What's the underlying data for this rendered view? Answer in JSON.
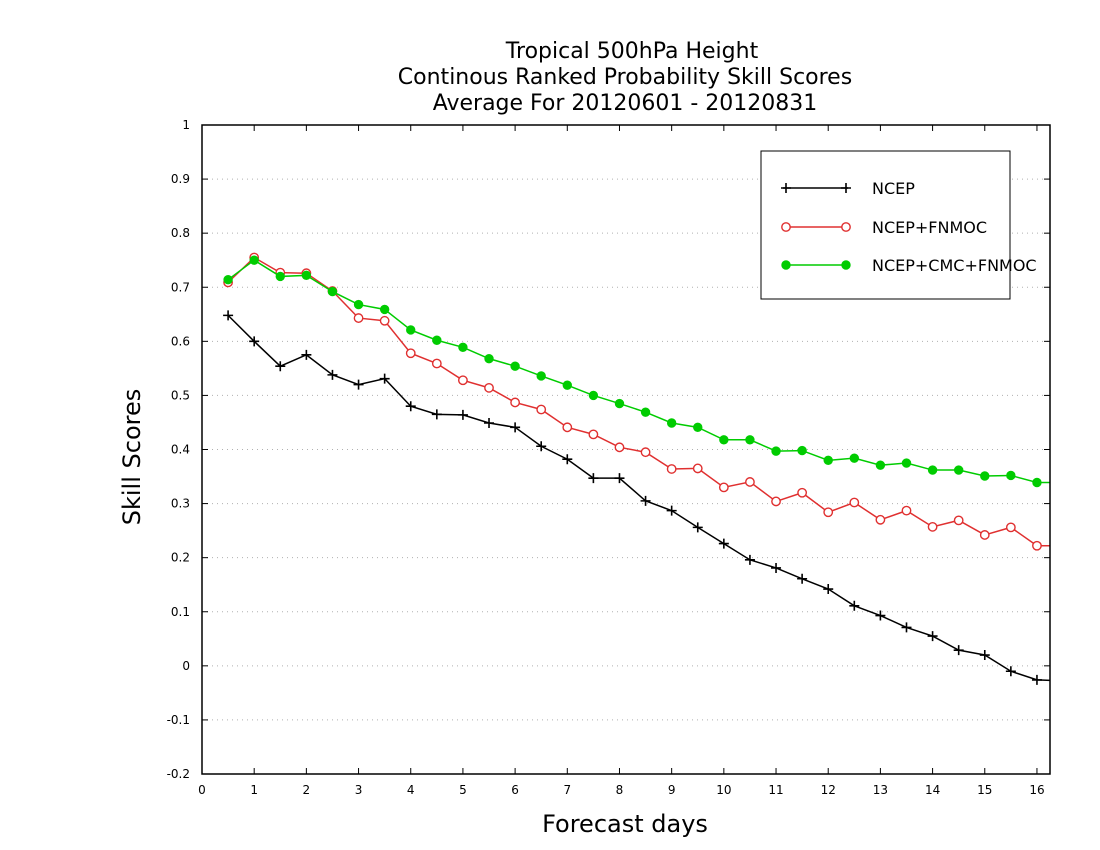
{
  "chart_data": {
    "type": "line",
    "title_lines": [
      "Tropical 500hPa Height",
      "Continous Ranked Probability Skill Scores",
      "Average For 20120601 - 20120831"
    ],
    "xlabel": "Forecast days",
    "ylabel": "Skill Scores",
    "xlim": [
      0,
      16.25
    ],
    "ylim": [
      -0.2,
      1
    ],
    "x_ticks": [
      0,
      1,
      2,
      3,
      4,
      5,
      6,
      7,
      8,
      9,
      10,
      11,
      12,
      13,
      14,
      15,
      16
    ],
    "x_tick_labels": [
      "0",
      "1",
      "2",
      "3",
      "4",
      "5",
      "6",
      "7",
      "8",
      "9",
      "10",
      "11",
      "12",
      "13",
      "14",
      "15",
      "16"
    ],
    "y_ticks": [
      -0.2,
      -0.1,
      0,
      0.1,
      0.2,
      0.3,
      0.4,
      0.5,
      0.6,
      0.7,
      0.8,
      0.9,
      1
    ],
    "y_tick_labels": [
      "-0.2",
      "-0.1",
      "0",
      "0.1",
      "0.2",
      "0.3",
      "0.4",
      "0.5",
      "0.6",
      "0.7",
      "0.8",
      "0.9",
      "1"
    ],
    "grid": "horizontal dotted",
    "legend_position": "top-right",
    "x": [
      0.5,
      1,
      1.5,
      2,
      2.5,
      3,
      3.5,
      4,
      4.5,
      5,
      5.5,
      6,
      6.5,
      7,
      7.5,
      8,
      8.5,
      9,
      9.5,
      10,
      10.5,
      11,
      11.5,
      12,
      12.5,
      13,
      13.5,
      14,
      14.5,
      15,
      15.5,
      16,
      16.25
    ],
    "series": [
      {
        "name": "NCEP",
        "color": "#000000",
        "marker": "plus",
        "values": [
          0.648,
          0.6,
          0.554,
          0.575,
          0.538,
          0.52,
          0.531,
          0.48,
          0.465,
          0.464,
          0.449,
          0.441,
          0.406,
          0.382,
          0.347,
          0.347,
          0.305,
          0.287,
          0.256,
          0.226,
          0.196,
          0.181,
          0.161,
          0.142,
          0.111,
          0.093,
          0.071,
          0.055,
          0.029,
          0.02,
          -0.01,
          -0.026,
          -0.027
        ]
      },
      {
        "name": "NCEP+FNMOC",
        "color": "#e03030",
        "marker": "open-circle",
        "values": [
          0.709,
          0.755,
          0.727,
          0.726,
          0.693,
          0.643,
          0.638,
          0.578,
          0.559,
          0.528,
          0.514,
          0.487,
          0.474,
          0.441,
          0.428,
          0.404,
          0.395,
          0.364,
          0.365,
          0.33,
          0.34,
          0.304,
          0.32,
          0.284,
          0.302,
          0.27,
          0.287,
          0.257,
          0.269,
          0.242,
          0.256,
          0.222,
          0.222
        ]
      },
      {
        "name": "NCEP+CMC+FNMOC",
        "color": "#00cc00",
        "marker": "filled-circle",
        "values": [
          0.714,
          0.75,
          0.72,
          0.722,
          0.692,
          0.668,
          0.659,
          0.621,
          0.602,
          0.589,
          0.568,
          0.554,
          0.536,
          0.519,
          0.5,
          0.485,
          0.469,
          0.449,
          0.441,
          0.418,
          0.418,
          0.397,
          0.398,
          0.38,
          0.384,
          0.371,
          0.375,
          0.362,
          0.362,
          0.351,
          0.352,
          0.339,
          0.339
        ]
      }
    ]
  }
}
